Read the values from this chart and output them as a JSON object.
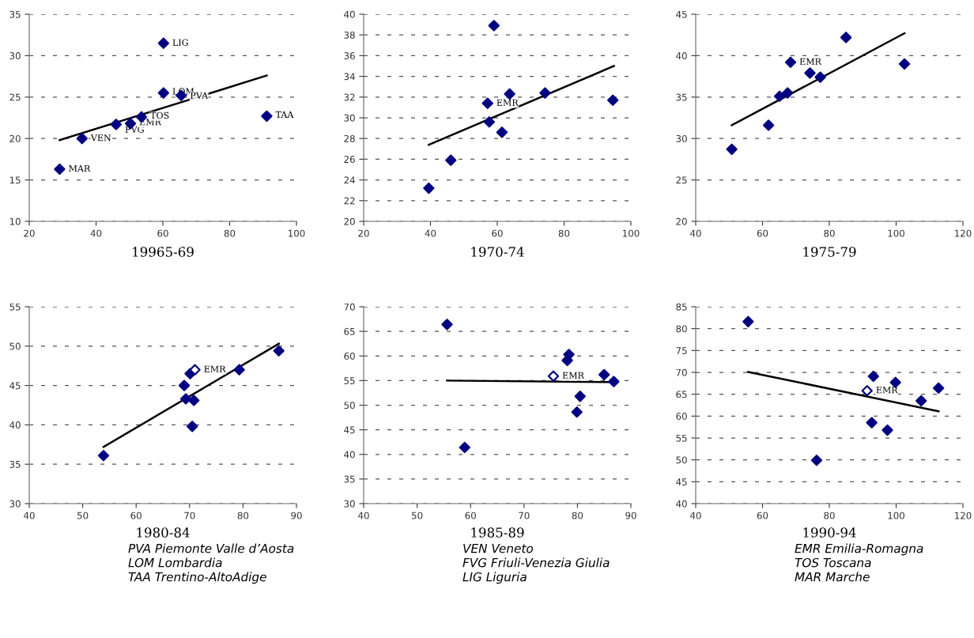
{
  "chart_data": [
    {
      "type": "scatter",
      "title": "19965-69",
      "xlim": [
        20,
        100
      ],
      "xticks": [
        20,
        40,
        60,
        80,
        100
      ],
      "ylim": [
        10,
        35
      ],
      "yticks": [
        10,
        15,
        20,
        25,
        30,
        35
      ],
      "grid": "y",
      "series": [
        {
          "marker": "diamond",
          "color": "#000080",
          "x": [
            29.1,
            35.8,
            46.0,
            50.3,
            53.6,
            60.2,
            65.5,
            60.2,
            91.1
          ],
          "values": [
            16.3,
            20.0,
            21.7,
            21.8,
            22.6,
            25.5,
            25.2,
            31.5,
            22.7
          ]
        },
        {
          "type": "line",
          "color": "#000000",
          "x": [
            29.1,
            91.1
          ],
          "values": [
            19.8,
            27.6
          ]
        }
      ],
      "annotations": [
        {
          "text": "MAR",
          "x": 29.1,
          "y": 16.3
        },
        {
          "text": "VEN",
          "x": 35.8,
          "y": 20.0
        },
        {
          "text": "FVG",
          "x": 46.0,
          "y": 21.0
        },
        {
          "text": "EMR",
          "x": 50.3,
          "y": 21.9
        },
        {
          "text": "TOS",
          "x": 53.6,
          "y": 22.7
        },
        {
          "text": "LOM",
          "x": 60.2,
          "y": 25.6
        },
        {
          "text": "PVA",
          "x": 65.5,
          "y": 25.1
        },
        {
          "text": "LIG",
          "x": 60.2,
          "y": 31.5
        },
        {
          "text": "TAA",
          "x": 91.1,
          "y": 22.8
        }
      ]
    },
    {
      "type": "scatter",
      "title": "1970-74",
      "xlim": [
        20,
        100
      ],
      "xticks": [
        20,
        40,
        60,
        80,
        100
      ],
      "ylim": [
        20,
        40
      ],
      "yticks": [
        20,
        22,
        24,
        26,
        28,
        30,
        32,
        34,
        36,
        38,
        40
      ],
      "grid": "y",
      "series": [
        {
          "marker": "diamond",
          "color": "#000080",
          "x": [
            39.5,
            46.1,
            57.1,
            57.6,
            59.0,
            61.4,
            63.7,
            74.3,
            94.6
          ],
          "values": [
            23.2,
            25.9,
            31.4,
            29.6,
            38.9,
            28.6,
            32.3,
            32.4,
            31.7
          ]
        },
        {
          "type": "line",
          "color": "#000000",
          "x": [
            39.5,
            94.9
          ],
          "values": [
            27.4,
            35.0
          ]
        }
      ],
      "annotations": [
        {
          "text": "EMR",
          "x": 57.1,
          "y": 31.4
        }
      ]
    },
    {
      "type": "scatter",
      "title": "1975-79",
      "xlim": [
        40,
        120
      ],
      "xticks": [
        40,
        60,
        80,
        100,
        120
      ],
      "ylim": [
        20,
        45
      ],
      "yticks": [
        20,
        25,
        30,
        35,
        40,
        45
      ],
      "grid": "y",
      "series": [
        {
          "marker": "diamond",
          "color": "#000080",
          "x": [
            50.8,
            61.8,
            65.1,
            67.5,
            68.4,
            74.2,
            77.3,
            85.0,
            102.5
          ],
          "values": [
            28.7,
            31.6,
            35.1,
            35.5,
            39.2,
            37.9,
            37.4,
            42.2,
            39.0
          ]
        },
        {
          "type": "line",
          "color": "#000000",
          "x": [
            50.8,
            102.5
          ],
          "values": [
            31.6,
            42.7
          ]
        }
      ],
      "annotations": [
        {
          "text": "EMR",
          "x": 68.4,
          "y": 39.2
        }
      ]
    },
    {
      "type": "scatter",
      "title": "1980-84",
      "xlim": [
        40,
        90
      ],
      "xticks": [
        40,
        50,
        60,
        70,
        80,
        90
      ],
      "ylim": [
        30,
        55
      ],
      "yticks": [
        30,
        35,
        40,
        45,
        50,
        55
      ],
      "grid": "y",
      "series": [
        {
          "marker": "diamond",
          "color": "#000080",
          "x": [
            53.9,
            69.0,
            69.3,
            70.1,
            71.0,
            70.8,
            70.5,
            79.3,
            86.7
          ],
          "values": [
            36.1,
            45.0,
            43.3,
            46.5,
            47.0,
            43.1,
            39.8,
            47.0,
            49.4
          ],
          "colors": [
            "#000080",
            "#000080",
            "#000080",
            "#000080",
            "#ffffff",
            "#000080",
            "#000080",
            "#000080",
            "#000080"
          ]
        },
        {
          "type": "line",
          "color": "#000000",
          "x": [
            53.9,
            86.7
          ],
          "values": [
            37.2,
            50.3
          ]
        }
      ],
      "annotations": [
        {
          "text": "EMR",
          "x": 71.0,
          "y": 47.0
        },
        "PVA Piemonte Valle d’Aosta",
        "LOM Lombardia",
        "TAA Trentino-AltoAdige"
      ]
    },
    {
      "type": "scatter",
      "title": "1985-89",
      "xlim": [
        40,
        90
      ],
      "xticks": [
        40,
        50,
        60,
        70,
        80,
        90
      ],
      "ylim": [
        30,
        70
      ],
      "yticks": [
        30,
        35,
        40,
        45,
        50,
        55,
        60,
        65,
        70
      ],
      "grid": "y",
      "series": [
        {
          "marker": "diamond",
          "color": "#000080",
          "x": [
            55.6,
            58.9,
            75.5,
            78.1,
            78.4,
            79.9,
            80.5,
            85.0,
            86.8
          ],
          "values": [
            66.4,
            41.4,
            55.9,
            59.1,
            60.3,
            48.6,
            51.8,
            56.2,
            54.8
          ],
          "colors": [
            "#000080",
            "#000080",
            "#ffffff",
            "#000080",
            "#000080",
            "#000080",
            "#000080",
            "#000080",
            "#000080"
          ]
        },
        {
          "type": "line",
          "color": "#000000",
          "x": [
            55.6,
            86.6
          ],
          "values": [
            55.0,
            54.7
          ]
        }
      ],
      "annotations": [
        {
          "text": "EMR",
          "x": 75.5,
          "y": 55.9
        },
        "VEN Veneto",
        "FVG Friuli-Venezia Giulia",
        "LIG Liguria"
      ]
    },
    {
      "type": "scatter",
      "title": "1990-94",
      "xlim": [
        40,
        120
      ],
      "xticks": [
        40,
        60,
        80,
        100,
        120
      ],
      "ylim": [
        40,
        85
      ],
      "yticks": [
        40,
        45,
        50,
        55,
        60,
        65,
        70,
        75,
        80,
        85
      ],
      "grid": "y",
      "series": [
        {
          "marker": "diamond",
          "color": "#000080",
          "x": [
            55.7,
            76.2,
            91.3,
            93.2,
            92.7,
            97.4,
            99.8,
            107.5,
            112.7
          ],
          "values": [
            81.6,
            49.9,
            65.8,
            69.1,
            58.5,
            56.8,
            67.7,
            63.5,
            66.4
          ],
          "colors": [
            "#000080",
            "#000080",
            "#ffffff",
            "#000080",
            "#000080",
            "#000080",
            "#000080",
            "#000080",
            "#000080"
          ]
        },
        {
          "type": "line",
          "color": "#000000",
          "x": [
            55.7,
            112.7
          ],
          "values": [
            70.1,
            61.1
          ]
        }
      ],
      "annotations": [
        {
          "text": "EMR",
          "x": 91.3,
          "y": 65.8
        },
        "EMR Emilia-Romagna",
        "TOS Toscana",
        "MAR Marche"
      ]
    }
  ]
}
